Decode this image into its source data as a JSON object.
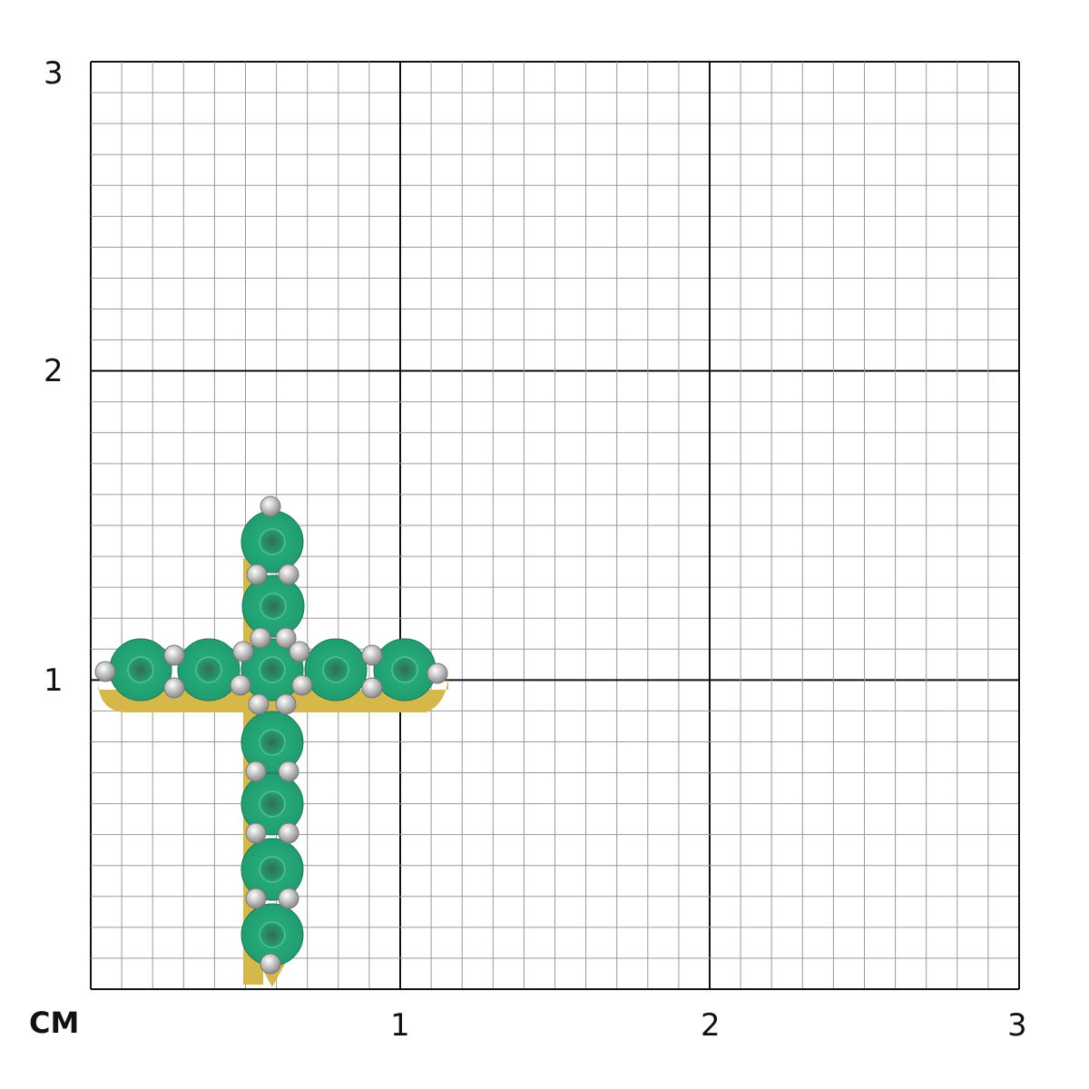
{
  "scale": {
    "unit_label": "CM",
    "y_labels": [
      "3",
      "2",
      "1"
    ],
    "x_labels": [
      "1",
      "2",
      "3"
    ],
    "range_cm": [
      0,
      3
    ],
    "minor_divisions_per_cm": 10
  },
  "pendant": {
    "type": "cross",
    "stone_color": "#1f9a6e",
    "metal_color": "#d6b84a",
    "prong_color": "#e4e4e4"
  },
  "colors": {
    "major_grid": "#111111",
    "minor_grid": "#9a9a9a"
  }
}
